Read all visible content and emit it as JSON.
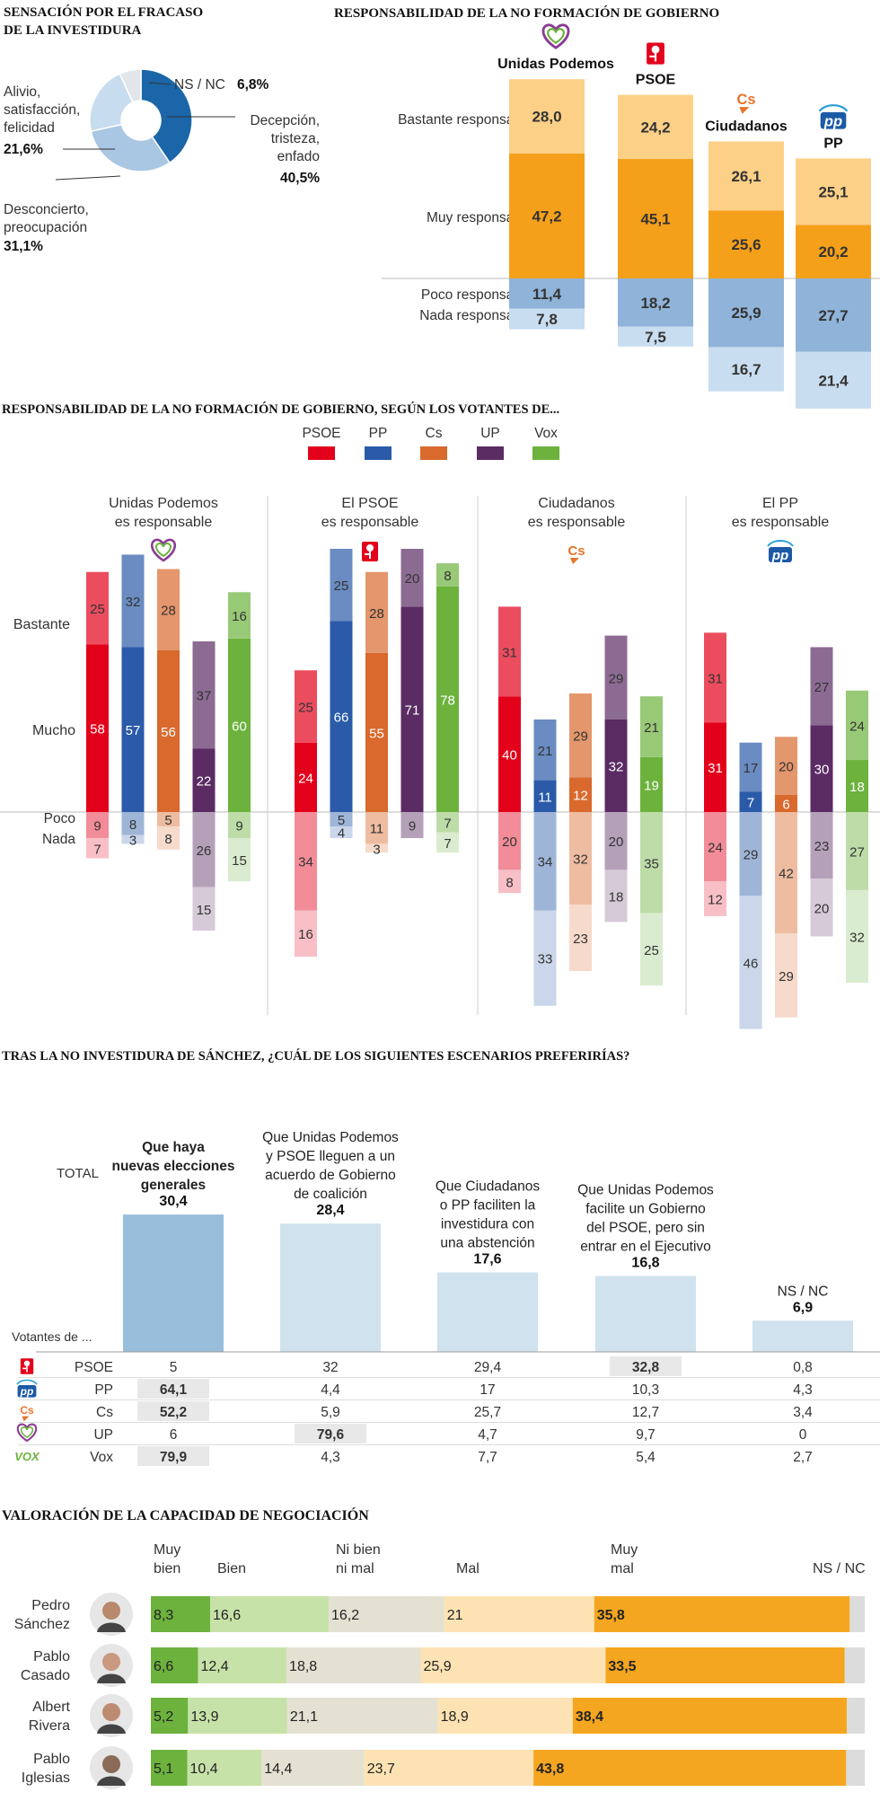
{
  "colors": {
    "orange_dark": "#f5a01a",
    "orange_light": "#fdd088",
    "blue_mid": "#8fb3d9",
    "blue_light": "#c8ddef",
    "blue_dark": "#1a66a8",
    "psoe": "#e3001b",
    "pp": "#2a5aa8",
    "cs": "#d9692d",
    "up": "#5b2b63",
    "vox": "#6cb23d"
  },
  "chart_data": [
    {
      "type": "pie",
      "id": "sensacion",
      "title": "SENSACIÓN POR EL FRACASO DE LA INVESTIDURA",
      "title_lines": [
        "SENSACIÓN POR EL FRACASO",
        "DE LA INVESTIDURA"
      ],
      "slices": [
        {
          "label_lines": [
            "Decepción,",
            "tristeza,",
            "enfado"
          ],
          "value": 40.5,
          "value_label": "40,5%",
          "color": "#1a66a8"
        },
        {
          "label_lines": [
            "Desconcierto,",
            "preocupación"
          ],
          "value": 31.1,
          "value_label": "31,1%",
          "color": "#a9c6e2"
        },
        {
          "label_lines": [
            "Alivio,",
            "satisfacción,",
            "felicidad"
          ],
          "value": 21.6,
          "value_label": "21,6%",
          "color": "#c8dcef"
        },
        {
          "label_lines": [
            "NS / NC"
          ],
          "value": 6.8,
          "value_label": "6,8%",
          "color": "#e2e6eb"
        }
      ]
    },
    {
      "type": "bar",
      "id": "responsabilidad",
      "title": "RESPONSABILIDAD DE LA NO FORMACIÓN DE GOBIERNO",
      "row_labels": [
        "Bastante responsable",
        "Muy responsable",
        "Poco  responsable",
        "Nada responsable"
      ],
      "parties": [
        {
          "name_lines": [
            "Unidas Podemos"
          ],
          "logo": "up-heart-icon",
          "bastante": 28.0,
          "muy": 47.2,
          "poco": 11.4,
          "nada": 7.8,
          "labels": [
            "28,0",
            "47,2",
            "11,4",
            "7,8"
          ]
        },
        {
          "name_lines": [
            "PSOE"
          ],
          "logo": "psoe-rose-icon",
          "bastante": 24.2,
          "muy": 45.1,
          "poco": 18.2,
          "nada": 7.5,
          "labels": [
            "24,2",
            "45,1",
            "18,2",
            "7,5"
          ]
        },
        {
          "name_lines": [
            "Ciudadanos"
          ],
          "logo": "cs-logo-icon",
          "bastante": 26.1,
          "muy": 25.6,
          "poco": 25.9,
          "nada": 16.7,
          "labels": [
            "26,1",
            "25,6",
            "25,9",
            "16,7"
          ]
        },
        {
          "name_lines": [
            "PP"
          ],
          "logo": "pp-logo-icon",
          "bastante": 25.1,
          "muy": 20.2,
          "poco": 27.7,
          "nada": 21.4,
          "labels": [
            "25,1",
            "20,2",
            "27,7",
            "21,4"
          ]
        }
      ]
    },
    {
      "type": "bar",
      "id": "responsabilidad_votantes",
      "title": "RESPONSABILIDAD DE LA NO FORMACIÓN DE GOBIERNO, SEGÚN LOS VOTANTES DE...",
      "legend": [
        {
          "name": "PSOE",
          "color": "#e3001b"
        },
        {
          "name": "PP",
          "color": "#2a5aa8"
        },
        {
          "name": "Cs",
          "color": "#d9692d"
        },
        {
          "name": "UP",
          "color": "#5b2b63"
        },
        {
          "name": "Vox",
          "color": "#6cb23d"
        }
      ],
      "row_labels": [
        "Bastante",
        "Mucho",
        "Poco",
        "Nada"
      ],
      "groups": [
        {
          "title_lines": [
            "Unidas Podemos",
            "es responsable"
          ],
          "logo": "up-heart-icon",
          "bars": [
            {
              "voter": "PSOE",
              "bastante": 25,
              "mucho": 58,
              "poco": 9,
              "nada": 7
            },
            {
              "voter": "PP",
              "bastante": 32,
              "mucho": 57,
              "poco": 8,
              "nada": 3
            },
            {
              "voter": "Cs",
              "bastante": 28,
              "mucho": 56,
              "poco": 5,
              "nada": 8
            },
            {
              "voter": "UP",
              "bastante": 37,
              "mucho": 22,
              "poco": 26,
              "nada": 15
            },
            {
              "voter": "Vox",
              "bastante": 16,
              "mucho": 60,
              "poco": 9,
              "nada": 15
            }
          ]
        },
        {
          "title_lines": [
            "El PSOE",
            "es responsable"
          ],
          "logo": "psoe-rose-icon",
          "bars": [
            {
              "voter": "PSOE",
              "bastante": 25,
              "mucho": 24,
              "poco": 34,
              "nada": 16
            },
            {
              "voter": "PP",
              "bastante": 25,
              "mucho": 66,
              "poco": 5,
              "nada": 4
            },
            {
              "voter": "Cs",
              "bastante": 28,
              "mucho": 55,
              "poco": 11,
              "nada": 3
            },
            {
              "voter": "UP",
              "bastante": 20,
              "mucho": 71,
              "poco": 9,
              "nada": 0
            },
            {
              "voter": "Vox",
              "bastante": 8,
              "mucho": 78,
              "poco": 7,
              "nada": 7
            }
          ]
        },
        {
          "title_lines": [
            "Ciudadanos",
            "es responsable"
          ],
          "logo": "cs-logo-icon",
          "bars": [
            {
              "voter": "PSOE",
              "bastante": 31,
              "mucho": 40,
              "poco": 20,
              "nada": 8
            },
            {
              "voter": "PP",
              "bastante": 21,
              "mucho": 11,
              "poco": 34,
              "nada": 33
            },
            {
              "voter": "Cs",
              "bastante": 29,
              "mucho": 12,
              "poco": 32,
              "nada": 23
            },
            {
              "voter": "UP",
              "bastante": 29,
              "mucho": 32,
              "poco": 20,
              "nada": 18
            },
            {
              "voter": "Vox",
              "bastante": 21,
              "mucho": 19,
              "poco": 35,
              "nada": 25
            }
          ]
        },
        {
          "title_lines": [
            "El PP",
            "es responsable"
          ],
          "logo": "pp-logo-icon",
          "bars": [
            {
              "voter": "PSOE",
              "bastante": 31,
              "mucho": 31,
              "poco": 24,
              "nada": 12
            },
            {
              "voter": "PP",
              "bastante": 17,
              "mucho": 7,
              "poco": 29,
              "nada": 46
            },
            {
              "voter": "Cs",
              "bastante": 20,
              "mucho": 6,
              "poco": 42,
              "nada": 29
            },
            {
              "voter": "UP",
              "bastante": 27,
              "mucho": 30,
              "poco": 23,
              "nada": 20
            },
            {
              "voter": "Vox",
              "bastante": 24,
              "mucho": 18,
              "poco": 27,
              "nada": 32
            }
          ]
        }
      ]
    },
    {
      "type": "bar",
      "id": "escenarios",
      "title": "TRAS LA NO INVESTIDURA DE SÁNCHEZ, ¿CUÁL DE LOS SIGUIENTES ESCENARIOS PREFERIRÍAS?",
      "total_label": "TOTAL",
      "voters_label": "Votantes de ...",
      "categories": [
        {
          "label_lines": [
            "Que haya",
            "nuevas elecciones",
            "generales"
          ],
          "bold": true,
          "total": 30.4,
          "total_label": "30,4"
        },
        {
          "label_lines": [
            "Que Unidas Podemos",
            "y PSOE lleguen a un",
            "acuerdo de Gobierno",
            "de coalición"
          ],
          "total": 28.4,
          "total_label": "28,4"
        },
        {
          "label_lines": [
            "Que Ciudadanos",
            "o PP faciliten la",
            "investidura con",
            "una abstención"
          ],
          "total": 17.6,
          "total_label": "17,6"
        },
        {
          "label_lines": [
            "Que Unidas Podemos",
            "facilite un Gobierno",
            "del PSOE, pero sin",
            "entrar en el Ejecutivo"
          ],
          "total": 16.8,
          "total_label": "16,8"
        },
        {
          "label_lines": [
            "NS / NC"
          ],
          "total": 6.9,
          "total_label": "6,9"
        }
      ],
      "rows": [
        {
          "party": "PSOE",
          "logo": "psoe-rose-icon",
          "values": [
            "5",
            "32",
            "29,4",
            "32,8",
            "0,8"
          ],
          "highlight": 3
        },
        {
          "party": "PP",
          "logo": "pp-logo-icon",
          "values": [
            "64,1",
            "4,4",
            "17",
            "10,3",
            "4,3"
          ],
          "highlight": 0
        },
        {
          "party": "Cs",
          "logo": "cs-logo-icon",
          "values": [
            "52,2",
            "5,9",
            "25,7",
            "12,7",
            "3,4"
          ],
          "highlight": 0
        },
        {
          "party": "UP",
          "logo": "up-heart-icon",
          "values": [
            "6",
            "79,6",
            "4,7",
            "9,7",
            "0"
          ],
          "highlight": 1
        },
        {
          "party": "Vox",
          "logo": "vox-logo-icon",
          "values": [
            "79,9",
            "4,3",
            "7,7",
            "5,4",
            "2,7"
          ],
          "highlight": 0
        }
      ]
    },
    {
      "type": "bar",
      "id": "negociacion",
      "title": "VALORACIÓN DE LA CAPACIDAD DE NEGOCIACIÓN",
      "scale": [
        {
          "label_lines": [
            "Muy",
            "bien"
          ],
          "color": "#6cb23d"
        },
        {
          "label_lines": [
            "Bien"
          ],
          "color": "#c7e2a8"
        },
        {
          "label_lines": [
            "Ni bien",
            "ni mal"
          ],
          "color": "#e4e1d3"
        },
        {
          "label_lines": [
            "Mal"
          ],
          "color": "#fde3b3"
        },
        {
          "label_lines": [
            "Muy",
            "mal"
          ],
          "color": "#f5a620"
        },
        {
          "label_lines": [
            "NS / NC"
          ],
          "color": "#dcdcdc"
        }
      ],
      "people": [
        {
          "name_lines": [
            "Pedro",
            "Sánchez"
          ],
          "values": [
            8.3,
            16.6,
            16.2,
            21,
            35.8
          ],
          "labels": [
            "8,3",
            "16,6",
            "16,2",
            "21",
            "35,8"
          ]
        },
        {
          "name_lines": [
            "Pablo",
            "Casado"
          ],
          "values": [
            6.6,
            12.4,
            18.8,
            25.9,
            33.5
          ],
          "labels": [
            "6,6",
            "12,4",
            "18,8",
            "25,9",
            "33,5"
          ]
        },
        {
          "name_lines": [
            "Albert",
            "Rivera"
          ],
          "values": [
            5.2,
            13.9,
            21.1,
            18.9,
            38.4
          ],
          "labels": [
            "5,2",
            "13,9",
            "21,1",
            "18,9",
            "38,4"
          ]
        },
        {
          "name_lines": [
            "Pablo",
            "Iglesias"
          ],
          "values": [
            5.1,
            10.4,
            14.4,
            23.7,
            43.8
          ],
          "labels": [
            "5,1",
            "10,4",
            "14,4",
            "23,7",
            "43,8"
          ]
        }
      ]
    }
  ]
}
